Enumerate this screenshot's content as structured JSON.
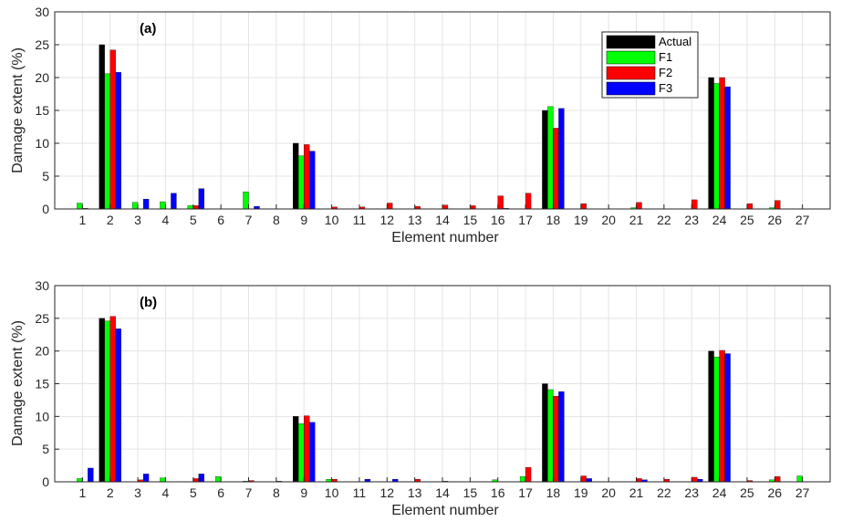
{
  "chart_data": [
    {
      "type": "bar",
      "panel_label": "(a)",
      "xlabel": "Element number",
      "ylabel": "Damage extent (%)",
      "ylim": [
        0,
        30
      ],
      "yticks": [
        0,
        5,
        10,
        15,
        20,
        25,
        30
      ],
      "grid": true,
      "legend_position": "top-right",
      "categories": [
        "1",
        "2",
        "3",
        "4",
        "5",
        "6",
        "7",
        "8",
        "9",
        "10",
        "11",
        "12",
        "13",
        "14",
        "15",
        "16",
        "17",
        "18",
        "19",
        "20",
        "21",
        "22",
        "23",
        "24",
        "25",
        "26",
        "27"
      ],
      "series": [
        {
          "name": "Actual",
          "color": "#000000",
          "values": [
            0,
            25,
            0,
            0,
            0,
            0,
            0,
            0,
            10,
            0,
            0,
            0,
            0,
            0,
            0,
            0,
            0,
            15,
            0,
            0,
            0,
            0,
            0,
            20,
            0,
            0,
            0
          ]
        },
        {
          "name": "F1",
          "color": "#00ff00",
          "values": [
            0.9,
            20.6,
            1.0,
            1.1,
            0.5,
            0,
            2.6,
            0,
            8.1,
            0,
            0,
            0,
            0,
            0,
            0,
            0,
            0,
            15.6,
            0,
            0,
            0.2,
            0,
            0,
            19.1,
            0,
            0.2,
            0
          ]
        },
        {
          "name": "F2",
          "color": "#ff0000",
          "values": [
            0.1,
            24.2,
            0,
            0,
            0.5,
            0,
            0,
            0,
            9.8,
            0.3,
            0.3,
            0.9,
            0.4,
            0.6,
            0.5,
            2.0,
            2.4,
            12.3,
            0.8,
            0,
            1.0,
            0,
            1.4,
            20.0,
            0.8,
            1.3,
            0
          ]
        },
        {
          "name": "F3",
          "color": "#0000ff",
          "values": [
            0,
            20.8,
            1.5,
            2.4,
            3.1,
            0,
            0.4,
            0,
            8.8,
            0,
            0,
            0,
            0,
            0,
            0,
            0.1,
            0,
            15.3,
            0,
            0,
            0,
            0,
            0,
            18.6,
            0,
            0,
            0
          ]
        }
      ]
    },
    {
      "type": "bar",
      "panel_label": "(b)",
      "xlabel": "Element number",
      "ylabel": "Damage extent (%)",
      "ylim": [
        0,
        30
      ],
      "yticks": [
        0,
        5,
        10,
        15,
        20,
        25,
        30
      ],
      "grid": true,
      "categories": [
        "1",
        "2",
        "3",
        "4",
        "5",
        "6",
        "7",
        "8",
        "9",
        "10",
        "11",
        "12",
        "13",
        "14",
        "15",
        "16",
        "17",
        "18",
        "19",
        "20",
        "21",
        "22",
        "23",
        "24",
        "25",
        "26",
        "27"
      ],
      "series": [
        {
          "name": "Actual",
          "color": "#000000",
          "values": [
            0,
            25,
            0,
            0,
            0,
            0,
            0,
            0,
            10,
            0,
            0,
            0,
            0,
            0,
            0,
            0,
            0,
            15,
            0,
            0,
            0,
            0,
            0,
            20,
            0,
            0,
            0
          ]
        },
        {
          "name": "F1",
          "color": "#00ff00",
          "values": [
            0.5,
            24.6,
            0,
            0.6,
            0,
            0.8,
            0.1,
            0,
            8.9,
            0.4,
            0,
            0,
            0,
            0,
            0,
            0.3,
            0.8,
            14.1,
            0,
            0,
            0,
            0,
            0,
            19.1,
            0,
            0.3,
            0.9
          ]
        },
        {
          "name": "F2",
          "color": "#ff0000",
          "values": [
            0,
            25.3,
            0.3,
            0,
            0.5,
            0,
            0.2,
            0.1,
            10.1,
            0.4,
            0,
            0,
            0.4,
            0.1,
            0,
            0,
            2.2,
            13.1,
            0.9,
            0,
            0.5,
            0.4,
            0.7,
            20.1,
            0.2,
            0.8,
            0
          ]
        },
        {
          "name": "F3",
          "color": "#0000ff",
          "values": [
            2.1,
            23.4,
            1.2,
            0,
            1.2,
            0,
            0,
            0,
            9.1,
            0,
            0.4,
            0.4,
            0,
            0,
            0,
            0,
            0,
            13.8,
            0.5,
            0,
            0.3,
            0,
            0.4,
            19.6,
            0,
            0,
            0
          ]
        }
      ]
    }
  ]
}
